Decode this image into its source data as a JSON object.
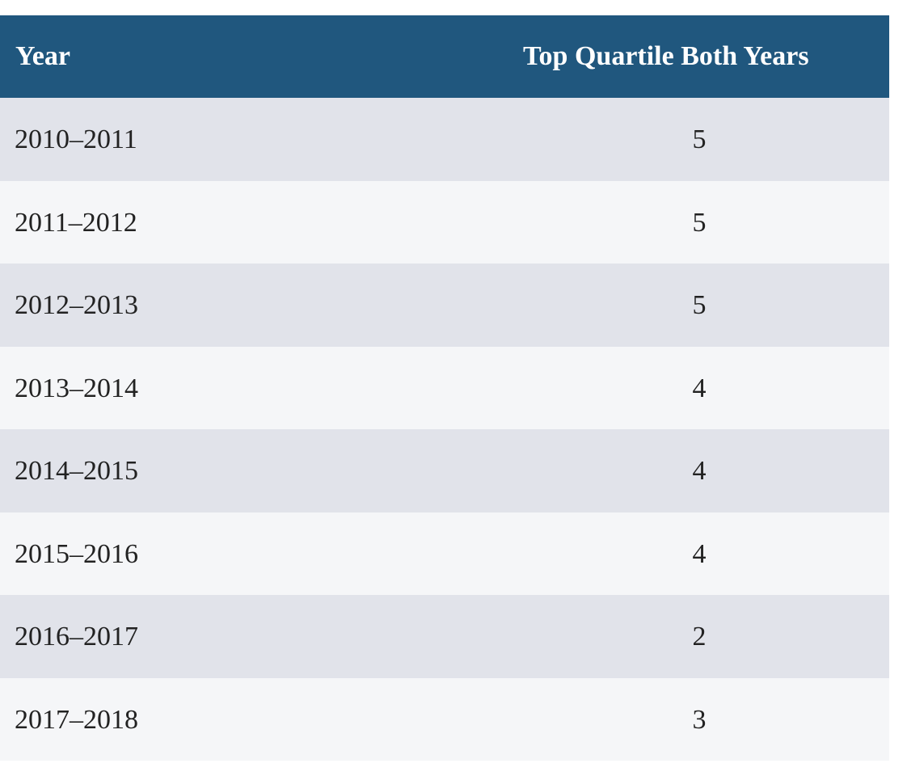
{
  "table": {
    "headers": {
      "year": "Year",
      "count": "Top Quartile Both Years"
    },
    "rows": [
      {
        "year": "2010–2011",
        "count": "5"
      },
      {
        "year": "2011–2012",
        "count": "5"
      },
      {
        "year": "2012–2013",
        "count": "5"
      },
      {
        "year": "2013–2014",
        "count": "4"
      },
      {
        "year": "2014–2015",
        "count": "4"
      },
      {
        "year": "2015–2016",
        "count": "4"
      },
      {
        "year": "2016–2017",
        "count": "2"
      },
      {
        "year": "2017–2018",
        "count": "3"
      }
    ]
  },
  "colors": {
    "header_bg": "#20577e",
    "row_odd_bg": "#e1e3ea",
    "row_even_bg": "#f5f6f8",
    "header_text": "#ffffff",
    "body_text": "#222222"
  }
}
